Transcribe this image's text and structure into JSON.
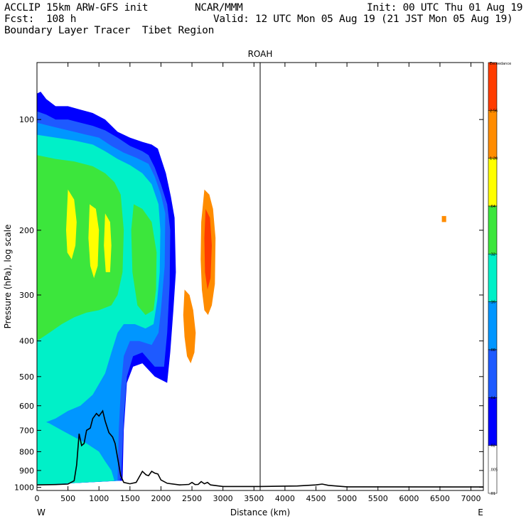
{
  "header": {
    "model": "ACCLIP 15km ARW-GFS init",
    "org": "NCAR/MMM",
    "init": "Init: 00 UTC Thu 01 Aug 19",
    "fcst": "Fcst:  108 h",
    "valid": "Valid: 12 UTC Mon 05 Aug 19 (21 JST Mon 05 Aug 19)",
    "field": "Boundary Layer Tracer  Tibet Region"
  },
  "chart_data": {
    "type": "heatmap",
    "title": "ROAH",
    "xlabel": "Distance (km)",
    "ylabel": "Pressure (hPa), log scale",
    "xlim": [
      0,
      7200
    ],
    "ylim": [
      1020,
      70
    ],
    "x_ticks": [
      0,
      500,
      1000,
      1500,
      2000,
      2500,
      3000,
      3500,
      4000,
      4500,
      5000,
      5500,
      6000,
      6500,
      7000
    ],
    "x_tick_labels": [
      "0",
      "500",
      "1000",
      "1500",
      "2000",
      "2500",
      "3000",
      "3500",
      "4000",
      "4500",
      "5000",
      "5500",
      "6000",
      "6500",
      "7000"
    ],
    "y_ticks": [
      100,
      200,
      300,
      400,
      500,
      600,
      700,
      800,
      900,
      1000
    ],
    "y_tick_labels": [
      "100",
      "200",
      "300",
      "400",
      "500",
      "600",
      "700",
      "800",
      "900",
      "1000"
    ],
    "left_label": "W",
    "right_label": "E",
    "vertical_line_km": 3600,
    "colorbar": {
      "levels": [
        "Exceedance",
        "2.56",
        "1.28",
        ".64",
        ".32",
        ".16",
        ".08",
        ".04",
        ".02",
        ".01",
        ".005"
      ],
      "colors": [
        "#ff3c00",
        "#ff8c00",
        "#ffff00",
        "#3ce63c",
        "#00f0c8",
        "#0096ff",
        "#1e5aff",
        "#0000ff",
        "#ffffff"
      ]
    },
    "terrain_hpa": [
      [
        0,
        985
      ],
      [
        300,
        983
      ],
      [
        500,
        980
      ],
      [
        600,
        960
      ],
      [
        640,
        870
      ],
      [
        680,
        715
      ],
      [
        720,
        770
      ],
      [
        760,
        760
      ],
      [
        800,
        700
      ],
      [
        860,
        690
      ],
      [
        900,
        650
      ],
      [
        960,
        630
      ],
      [
        1000,
        640
      ],
      [
        1060,
        620
      ],
      [
        1100,
        660
      ],
      [
        1160,
        710
      ],
      [
        1220,
        730
      ],
      [
        1260,
        760
      ],
      [
        1300,
        830
      ],
      [
        1350,
        930
      ],
      [
        1400,
        970
      ],
      [
        1500,
        978
      ],
      [
        1600,
        970
      ],
      [
        1700,
        905
      ],
      [
        1760,
        925
      ],
      [
        1800,
        930
      ],
      [
        1850,
        905
      ],
      [
        1900,
        915
      ],
      [
        1950,
        920
      ],
      [
        2000,
        955
      ],
      [
        2100,
        975
      ],
      [
        2300,
        985
      ],
      [
        2450,
        982
      ],
      [
        2500,
        970
      ],
      [
        2550,
        983
      ],
      [
        2600,
        982
      ],
      [
        2650,
        965
      ],
      [
        2700,
        978
      ],
      [
        2750,
        970
      ],
      [
        2800,
        985
      ],
      [
        3000,
        995
      ],
      [
        3600,
        995
      ],
      [
        4200,
        992
      ],
      [
        4500,
        985
      ],
      [
        4600,
        980
      ],
      [
        4700,
        988
      ],
      [
        5000,
        997
      ],
      [
        7200,
        998
      ]
    ],
    "contour_regions": [
      {
        "level": 0,
        "pts": [
          [
            0,
            85
          ],
          [
            60,
            84
          ],
          [
            150,
            88
          ],
          [
            300,
            92
          ],
          [
            500,
            92
          ],
          [
            700,
            94
          ],
          [
            900,
            96
          ],
          [
            1100,
            100
          ],
          [
            1300,
            108
          ],
          [
            1500,
            112
          ],
          [
            1700,
            115
          ],
          [
            1850,
            117
          ],
          [
            1950,
            120
          ],
          [
            2080,
            140
          ],
          [
            2160,
            162
          ],
          [
            2220,
            185
          ],
          [
            2240,
            260
          ],
          [
            2200,
            330
          ],
          [
            2150,
            430
          ],
          [
            2100,
            520
          ],
          [
            1900,
            500
          ],
          [
            1700,
            460
          ],
          [
            1550,
            470
          ],
          [
            1450,
            520
          ],
          [
            1400,
            700
          ],
          [
            1380,
            960
          ],
          [
            1300,
            960
          ],
          [
            0,
            985
          ]
        ]
      },
      {
        "level": 1,
        "pts": [
          [
            0,
            95
          ],
          [
            150,
            97
          ],
          [
            300,
            100
          ],
          [
            500,
            100
          ],
          [
            700,
            102
          ],
          [
            900,
            104
          ],
          [
            1100,
            107
          ],
          [
            1300,
            112
          ],
          [
            1500,
            118
          ],
          [
            1700,
            122
          ],
          [
            1800,
            125
          ],
          [
            1900,
            135
          ],
          [
            2000,
            150
          ],
          [
            2100,
            170
          ],
          [
            2150,
            200
          ],
          [
            2140,
            280
          ],
          [
            2100,
            380
          ],
          [
            2050,
            470
          ],
          [
            1900,
            470
          ],
          [
            1700,
            430
          ],
          [
            1550,
            440
          ],
          [
            1450,
            500
          ],
          [
            1400,
            650
          ],
          [
            1360,
            940
          ],
          [
            1300,
            960
          ],
          [
            0,
            985
          ]
        ]
      },
      {
        "level": 2,
        "pts": [
          [
            0,
            102
          ],
          [
            200,
            104
          ],
          [
            400,
            106
          ],
          [
            600,
            108
          ],
          [
            800,
            110
          ],
          [
            1000,
            112
          ],
          [
            1200,
            118
          ],
          [
            1400,
            123
          ],
          [
            1600,
            127
          ],
          [
            1800,
            132
          ],
          [
            1900,
            143
          ],
          [
            2000,
            160
          ],
          [
            2070,
            180
          ],
          [
            2060,
            250
          ],
          [
            2000,
            330
          ],
          [
            1960,
            380
          ],
          [
            1850,
            410
          ],
          [
            1650,
            400
          ],
          [
            1500,
            400
          ],
          [
            1400,
            440
          ],
          [
            1350,
            550
          ],
          [
            1320,
            700
          ],
          [
            1300,
            960
          ],
          [
            0,
            985
          ]
        ]
      },
      {
        "level": 3,
        "pts": [
          [
            0,
            110
          ],
          [
            300,
            112
          ],
          [
            600,
            114
          ],
          [
            900,
            117
          ],
          [
            1100,
            122
          ],
          [
            1300,
            128
          ],
          [
            1500,
            133
          ],
          [
            1700,
            140
          ],
          [
            1850,
            150
          ],
          [
            1960,
            170
          ],
          [
            1990,
            200
          ],
          [
            1980,
            260
          ],
          [
            1940,
            310
          ],
          [
            1880,
            360
          ],
          [
            1750,
            370
          ],
          [
            1580,
            360
          ],
          [
            1400,
            360
          ],
          [
            1300,
            380
          ],
          [
            1200,
            430
          ],
          [
            1100,
            490
          ],
          [
            900,
            560
          ],
          [
            700,
            600
          ],
          [
            500,
            620
          ],
          [
            300,
            650
          ],
          [
            0,
            680
          ]
        ]
      },
      {
        "level": 4,
        "pts": [
          [
            0,
            125
          ],
          [
            300,
            128
          ],
          [
            600,
            130
          ],
          [
            900,
            134
          ],
          [
            1100,
            140
          ],
          [
            1250,
            148
          ],
          [
            1350,
            160
          ],
          [
            1400,
            200
          ],
          [
            1380,
            260
          ],
          [
            1300,
            300
          ],
          [
            1200,
            320
          ],
          [
            1000,
            330
          ],
          [
            800,
            335
          ],
          [
            600,
            345
          ],
          [
            400,
            360
          ],
          [
            200,
            380
          ],
          [
            0,
            400
          ]
        ]
      },
      {
        "level": 4,
        "pts": [
          [
            1560,
            170
          ],
          [
            1700,
            175
          ],
          [
            1850,
            190
          ],
          [
            1930,
            230
          ],
          [
            1920,
            290
          ],
          [
            1880,
            330
          ],
          [
            1750,
            340
          ],
          [
            1620,
            320
          ],
          [
            1540,
            260
          ],
          [
            1520,
            200
          ]
        ]
      },
      {
        "level": 5,
        "pts": [
          [
            500,
            155
          ],
          [
            600,
            165
          ],
          [
            640,
            190
          ],
          [
            620,
            220
          ],
          [
            560,
            240
          ],
          [
            490,
            230
          ],
          [
            470,
            200
          ]
        ]
      },
      {
        "level": 5,
        "pts": [
          [
            850,
            170
          ],
          [
            950,
            175
          ],
          [
            1000,
            200
          ],
          [
            980,
            250
          ],
          [
            920,
            270
          ],
          [
            860,
            250
          ],
          [
            830,
            210
          ]
        ]
      },
      {
        "level": 5,
        "pts": [
          [
            1100,
            180
          ],
          [
            1180,
            190
          ],
          [
            1200,
            220
          ],
          [
            1180,
            260
          ],
          [
            1110,
            260
          ],
          [
            1080,
            220
          ]
        ]
      },
      {
        "level": 1,
        "pts": [
          [
            0,
            560
          ],
          [
            300,
            580
          ],
          [
            600,
            600
          ],
          [
            800,
            640
          ],
          [
            1000,
            680
          ],
          [
            1200,
            740
          ],
          [
            1300,
            800
          ],
          [
            1340,
            960
          ],
          [
            0,
            985
          ]
        ]
      },
      {
        "level": 2,
        "pts": [
          [
            0,
            600
          ],
          [
            200,
            620
          ],
          [
            400,
            640
          ],
          [
            600,
            670
          ],
          [
            800,
            700
          ],
          [
            1000,
            740
          ],
          [
            1150,
            790
          ],
          [
            1250,
            850
          ],
          [
            1300,
            960
          ],
          [
            0,
            985
          ]
        ]
      },
      {
        "level": 3,
        "pts": [
          [
            0,
            650
          ],
          [
            200,
            670
          ],
          [
            400,
            700
          ],
          [
            600,
            730
          ],
          [
            800,
            760
          ],
          [
            1000,
            800
          ],
          [
            1100,
            850
          ],
          [
            1200,
            900
          ],
          [
            1250,
            960
          ],
          [
            0,
            985
          ]
        ]
      },
      {
        "level": 6,
        "pts": [
          [
            2700,
            155
          ],
          [
            2780,
            160
          ],
          [
            2840,
            175
          ],
          [
            2880,
            210
          ],
          [
            2870,
            280
          ],
          [
            2820,
            320
          ],
          [
            2760,
            340
          ],
          [
            2700,
            330
          ],
          [
            2660,
            290
          ],
          [
            2640,
            240
          ],
          [
            2650,
            190
          ]
        ]
      },
      {
        "level": 7,
        "pts": [
          [
            2720,
            175
          ],
          [
            2790,
            185
          ],
          [
            2820,
            220
          ],
          [
            2800,
            270
          ],
          [
            2750,
            290
          ],
          [
            2710,
            260
          ],
          [
            2700,
            210
          ]
        ]
      },
      {
        "level": 6,
        "pts": [
          [
            2380,
            290
          ],
          [
            2460,
            300
          ],
          [
            2520,
            330
          ],
          [
            2560,
            380
          ],
          [
            2540,
            430
          ],
          [
            2480,
            460
          ],
          [
            2420,
            440
          ],
          [
            2380,
            390
          ],
          [
            2360,
            340
          ]
        ]
      },
      {
        "level": 6,
        "pts": [
          [
            6530,
            183
          ],
          [
            6600,
            183
          ],
          [
            6600,
            190
          ],
          [
            6530,
            190
          ]
        ]
      }
    ]
  }
}
